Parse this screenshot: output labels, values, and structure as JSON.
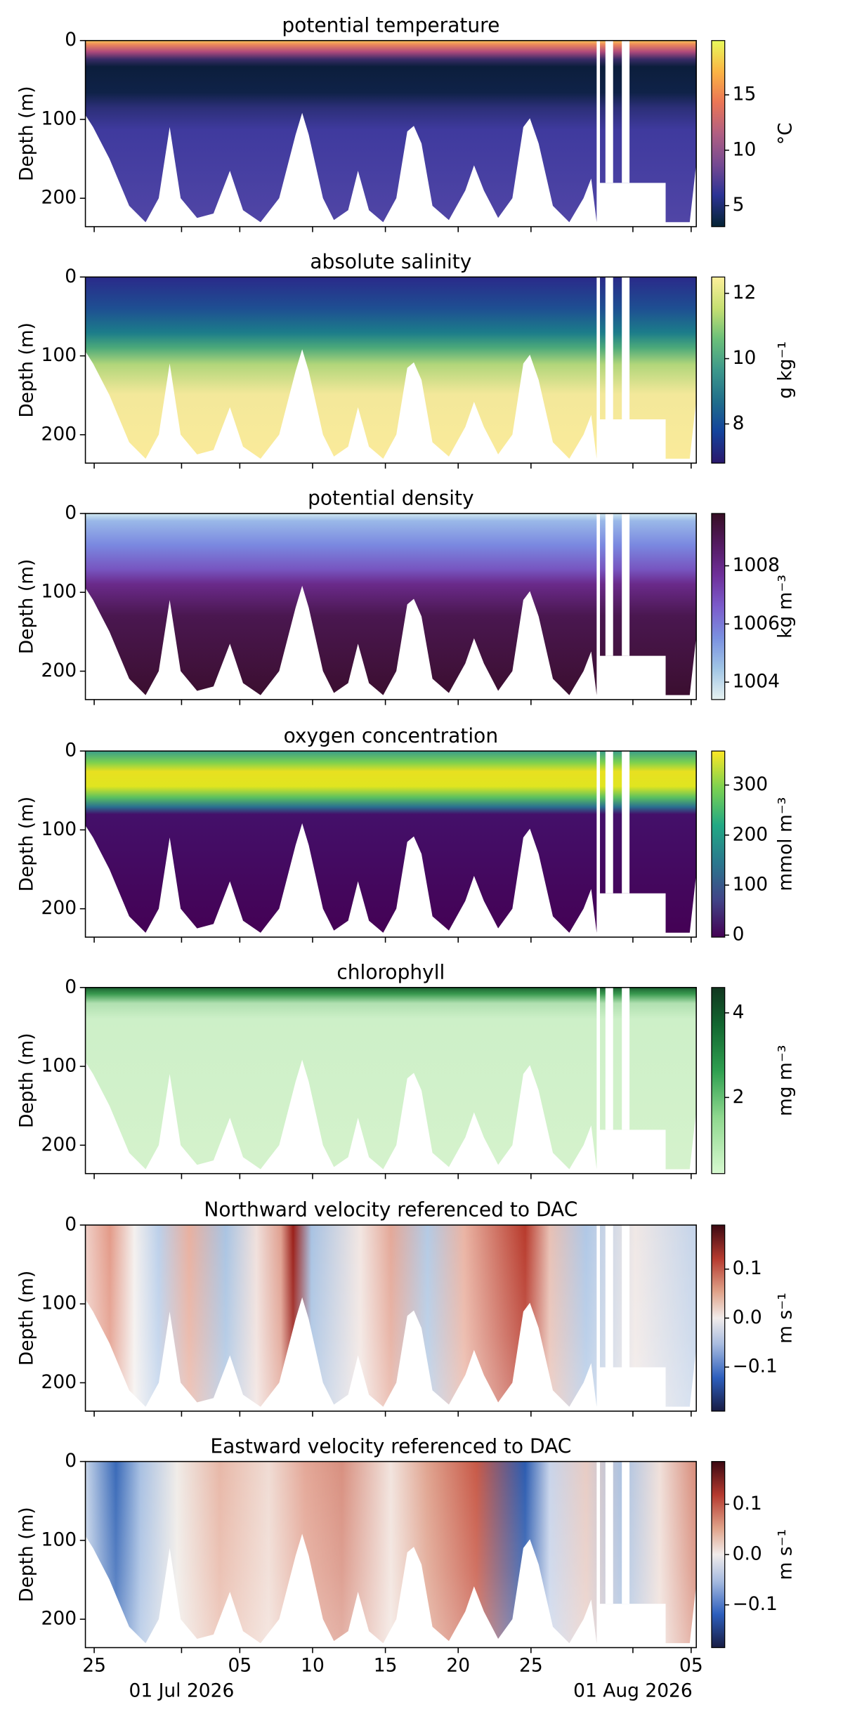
{
  "chart_data": [
    {
      "type": "heatmap",
      "title": "potential temperature",
      "ylabel": "Depth (m)",
      "ylim": [
        236,
        0
      ],
      "yticks": [
        0,
        100,
        200
      ],
      "colorbar_label": "°C",
      "clim": [
        3.1,
        19.9
      ],
      "cticks": [
        5,
        10,
        15
      ]
    },
    {
      "type": "heatmap",
      "title": "absolute salinity",
      "ylabel": "Depth (m)",
      "ylim": [
        236,
        0
      ],
      "yticks": [
        0,
        100,
        200
      ],
      "colorbar_label": "g kg⁻¹",
      "clim": [
        6.8,
        12.5
      ],
      "cticks": [
        8,
        10,
        12
      ]
    },
    {
      "type": "heatmap",
      "title": "potential density",
      "ylabel": "Depth (m)",
      "ylim": [
        236,
        0
      ],
      "yticks": [
        0,
        100,
        200
      ],
      "colorbar_label": "kg m⁻³",
      "clim": [
        1003.4,
        1009.8
      ],
      "cticks": [
        1004,
        1006,
        1008
      ]
    },
    {
      "type": "heatmap",
      "title": "oxygen concentration",
      "ylabel": "Depth (m)",
      "ylim": [
        236,
        0
      ],
      "yticks": [
        0,
        100,
        200
      ],
      "colorbar_label": "mmol m⁻³",
      "clim": [
        -4,
        368
      ],
      "cticks": [
        0,
        100,
        200,
        300
      ]
    },
    {
      "type": "heatmap",
      "title": "chlorophyll",
      "ylabel": "Depth (m)",
      "ylim": [
        236,
        0
      ],
      "yticks": [
        0,
        100,
        200
      ],
      "colorbar_label": "mg m⁻³",
      "clim": [
        0.2,
        4.6
      ],
      "cticks": [
        2,
        4
      ]
    },
    {
      "type": "heatmap",
      "title": "Northward velocity referenced to DAC",
      "ylabel": "Depth (m)",
      "ylim": [
        236,
        0
      ],
      "yticks": [
        0,
        100,
        200
      ],
      "colorbar_label": "m s⁻¹",
      "clim": [
        -0.19,
        0.19
      ],
      "cticks": [
        {
          "value": -0.1,
          "label": "−0.1"
        },
        {
          "value": 0,
          "label": "0.0"
        },
        0.1
      ]
    },
    {
      "type": "heatmap",
      "title": "Eastward velocity referenced to DAC",
      "ylabel": "Depth (m)",
      "ylim": [
        236,
        0
      ],
      "yticks": [
        0,
        100,
        200
      ],
      "colorbar_label": "m s⁻¹",
      "clim": [
        -0.185,
        0.185
      ],
      "cticks": [
        {
          "value": -0.1,
          "label": "−0.1"
        },
        {
          "value": 0,
          "label": "0.0"
        },
        0.1
      ],
      "xlim": [
        "2026-06-24T09:30Z",
        "2026-08-05T08:30Z"
      ],
      "xticks": [
        {
          "value": "2026-06-25",
          "label": "25"
        },
        {
          "value": "2026-07-01",
          "label": "01 Jul 2026"
        },
        {
          "value": "2026-07-05",
          "label": "05"
        },
        {
          "value": "2026-07-10",
          "label": "10"
        },
        {
          "value": "2026-07-15",
          "label": "15"
        },
        {
          "value": "2026-07-20",
          "label": "20"
        },
        {
          "value": "2026-07-25",
          "label": "25"
        },
        {
          "value": "2026-08-01",
          "label": "01 Aug 2026"
        },
        {
          "value": "2026-08-05",
          "label": "05"
        }
      ]
    }
  ]
}
